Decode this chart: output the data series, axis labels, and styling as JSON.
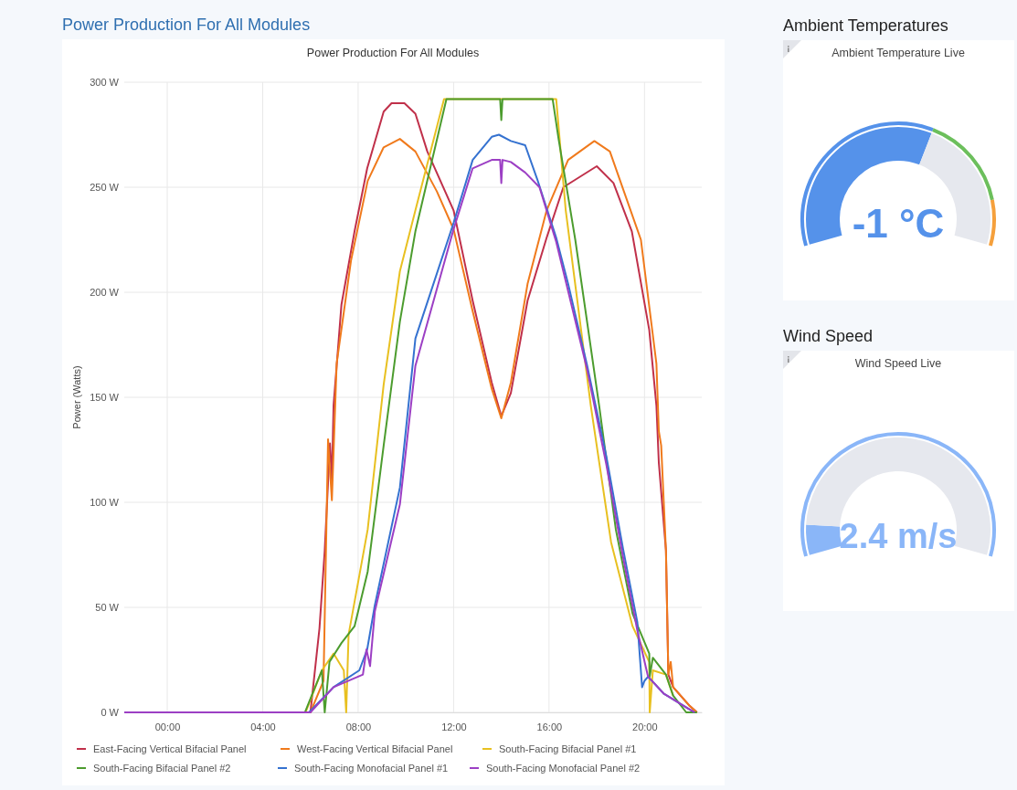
{
  "chart_data": [
    {
      "type": "line",
      "title": "Power Production For All Modules",
      "subtitle": "Power Production For All Modules",
      "ylabel": "Power (Watts)",
      "xlim": [
        -1.8,
        22.4
      ],
      "ylim": [
        0,
        300
      ],
      "xticks": [
        {
          "value": 0,
          "label": "00:00"
        },
        {
          "value": 4,
          "label": "04:00"
        },
        {
          "value": 8,
          "label": "08:00"
        },
        {
          "value": 12,
          "label": "12:00"
        },
        {
          "value": 16,
          "label": "16:00"
        },
        {
          "value": 20,
          "label": "20:00"
        }
      ],
      "yticks": [
        {
          "value": 0,
          "label": "0 W"
        },
        {
          "value": 50,
          "label": "50 W"
        },
        {
          "value": 100,
          "label": "100 W"
        },
        {
          "value": 150,
          "label": "150 W"
        },
        {
          "value": 200,
          "label": "200 W"
        },
        {
          "value": 250,
          "label": "250 W"
        },
        {
          "value": 300,
          "label": "300 W"
        }
      ],
      "grid": true,
      "legend": "bottom",
      "marker": "none",
      "line_style": "solid",
      "series": [
        {
          "name": "East-Facing Vertical Bifacial Panel",
          "color": "#c0304a",
          "x": [
            -1.8,
            6.0,
            6.38,
            6.6,
            6.82,
            6.9,
            6.97,
            7.3,
            7.85,
            8.38,
            9.07,
            9.4,
            9.94,
            10.4,
            10.9,
            12,
            12.8,
            13.6,
            14,
            14.4,
            15.1,
            15.9,
            16.6,
            18,
            18.7,
            19.47,
            20.2,
            20.5,
            20.6,
            20.9,
            21,
            21.2,
            21.9,
            22.2
          ],
          "values": [
            0,
            0,
            40,
            77,
            128,
            110,
            146,
            194,
            229,
            259,
            286,
            290,
            290,
            285,
            267,
            239,
            196,
            157,
            141,
            152,
            196,
            226,
            250,
            260,
            252,
            229,
            182,
            146,
            119,
            77,
            18,
            12,
            3,
            0
          ]
        },
        {
          "name": "West-Facing Vertical Bifacial Panel",
          "color": "#f07a1c",
          "x": [
            -1.8,
            6.0,
            6.55,
            6.74,
            6.9,
            7.1,
            7.7,
            8.4,
            9.07,
            9.75,
            10.4,
            11.3,
            12,
            12.8,
            13.6,
            14,
            14.4,
            15.1,
            15.9,
            16.8,
            17.9,
            18.55,
            19.85,
            20.5,
            20.6,
            20.7,
            20.9,
            21,
            21.1,
            21.2,
            21.9,
            22.2
          ],
          "values": [
            0,
            0,
            15,
            130,
            101,
            166,
            215,
            253,
            269,
            273,
            267,
            248,
            230,
            191,
            154,
            140,
            157,
            204,
            239,
            263,
            272,
            267,
            225,
            166,
            134,
            127,
            77,
            18,
            24,
            12,
            3,
            0
          ]
        },
        {
          "name": "South-Facing Bifacial Panel #1",
          "color": "#e8c020",
          "x": [
            -1.8,
            5.8,
            6.48,
            6.97,
            7.4,
            7.5,
            7.6,
            8.4,
            9.07,
            9.75,
            10.4,
            11.6,
            16.3,
            16.7,
            17.75,
            18.6,
            19.5,
            20.2,
            20.22,
            20.35,
            20.9,
            21.2
          ],
          "values": [
            0,
            0,
            20,
            28,
            20,
            0,
            37,
            87,
            156,
            210,
            239,
            292,
            292,
            239,
            146,
            81,
            41,
            24,
            0,
            20,
            18,
            8
          ]
        },
        {
          "name": "South-Facing Bifacial Panel #2",
          "color": "#4c9c2e",
          "x": [
            -1.8,
            5.77,
            6.48,
            6.6,
            6.8,
            7.3,
            7.85,
            8.4,
            9.07,
            9.75,
            10.4,
            11.7,
            13.95,
            14.0,
            14.05,
            16.15,
            16.4,
            17.1,
            18.1,
            18.8,
            19.5,
            20.2,
            20.22,
            20.35,
            20.9,
            21.2,
            21.75,
            22.2
          ],
          "values": [
            0,
            0,
            20,
            0,
            24,
            33,
            41,
            67,
            127,
            186,
            229,
            292,
            292,
            282,
            292,
            292,
            273,
            225,
            146,
            87,
            47,
            28,
            17,
            26,
            18,
            8,
            0,
            0
          ]
        },
        {
          "name": "South-Facing Monofacial Panel #1",
          "color": "#3572d0",
          "x": [
            -1.8,
            5.94,
            6.97,
            8.05,
            8.38,
            8.7,
            9.75,
            10.4,
            12,
            12.8,
            13.6,
            13.9,
            14.4,
            15,
            15.5,
            16.3,
            16.8,
            17.6,
            18.4,
            19.1,
            19.7,
            19.9,
            20.0,
            20.15,
            20.8,
            21.8,
            22.1
          ],
          "values": [
            0,
            0,
            12,
            20,
            30,
            51,
            107,
            178,
            233,
            263,
            274,
            275,
            272,
            270,
            254,
            226,
            204,
            165,
            122,
            78,
            43,
            12,
            15,
            17,
            9,
            2,
            0
          ]
        },
        {
          "name": "South-Facing Monofacial Panel #2",
          "color": "#9c3fc4",
          "x": [
            -1.8,
            6.0,
            6.97,
            8.2,
            8.35,
            8.5,
            8.7,
            9.75,
            10.4,
            12,
            12.8,
            13.6,
            13.95,
            14,
            14.05,
            14.4,
            15,
            15.6,
            16.3,
            17.6,
            18.4,
            19.1,
            19.7,
            20.15,
            20.8,
            21.8,
            22.1
          ],
          "values": [
            0,
            0,
            12,
            18,
            30,
            22,
            48,
            99,
            165,
            230,
            259,
            263,
            263,
            252,
            263,
            262,
            257,
            250,
            224,
            163,
            118,
            74,
            39,
            17,
            9,
            2,
            0
          ]
        }
      ]
    },
    {
      "type": "donut",
      "title": "Ambient Temperatures",
      "subtitle": "Ambient Temperature Live",
      "categories": [
        null,
        null
      ],
      "values": [
        60,
        40
      ],
      "colors": [
        "#5592ea",
        "#e6e8ee"
      ],
      "annotations": [
        "-1 °C"
      ]
    },
    {
      "type": "donut",
      "title": "Wind Speed",
      "subtitle": "Wind Speed Live",
      "categories": [
        null,
        null
      ],
      "values": [
        9,
        91
      ],
      "colors": [
        "#8ab6f8",
        "#e6e8ee"
      ],
      "annotations": [
        "2.4 m/s"
      ]
    }
  ]
}
